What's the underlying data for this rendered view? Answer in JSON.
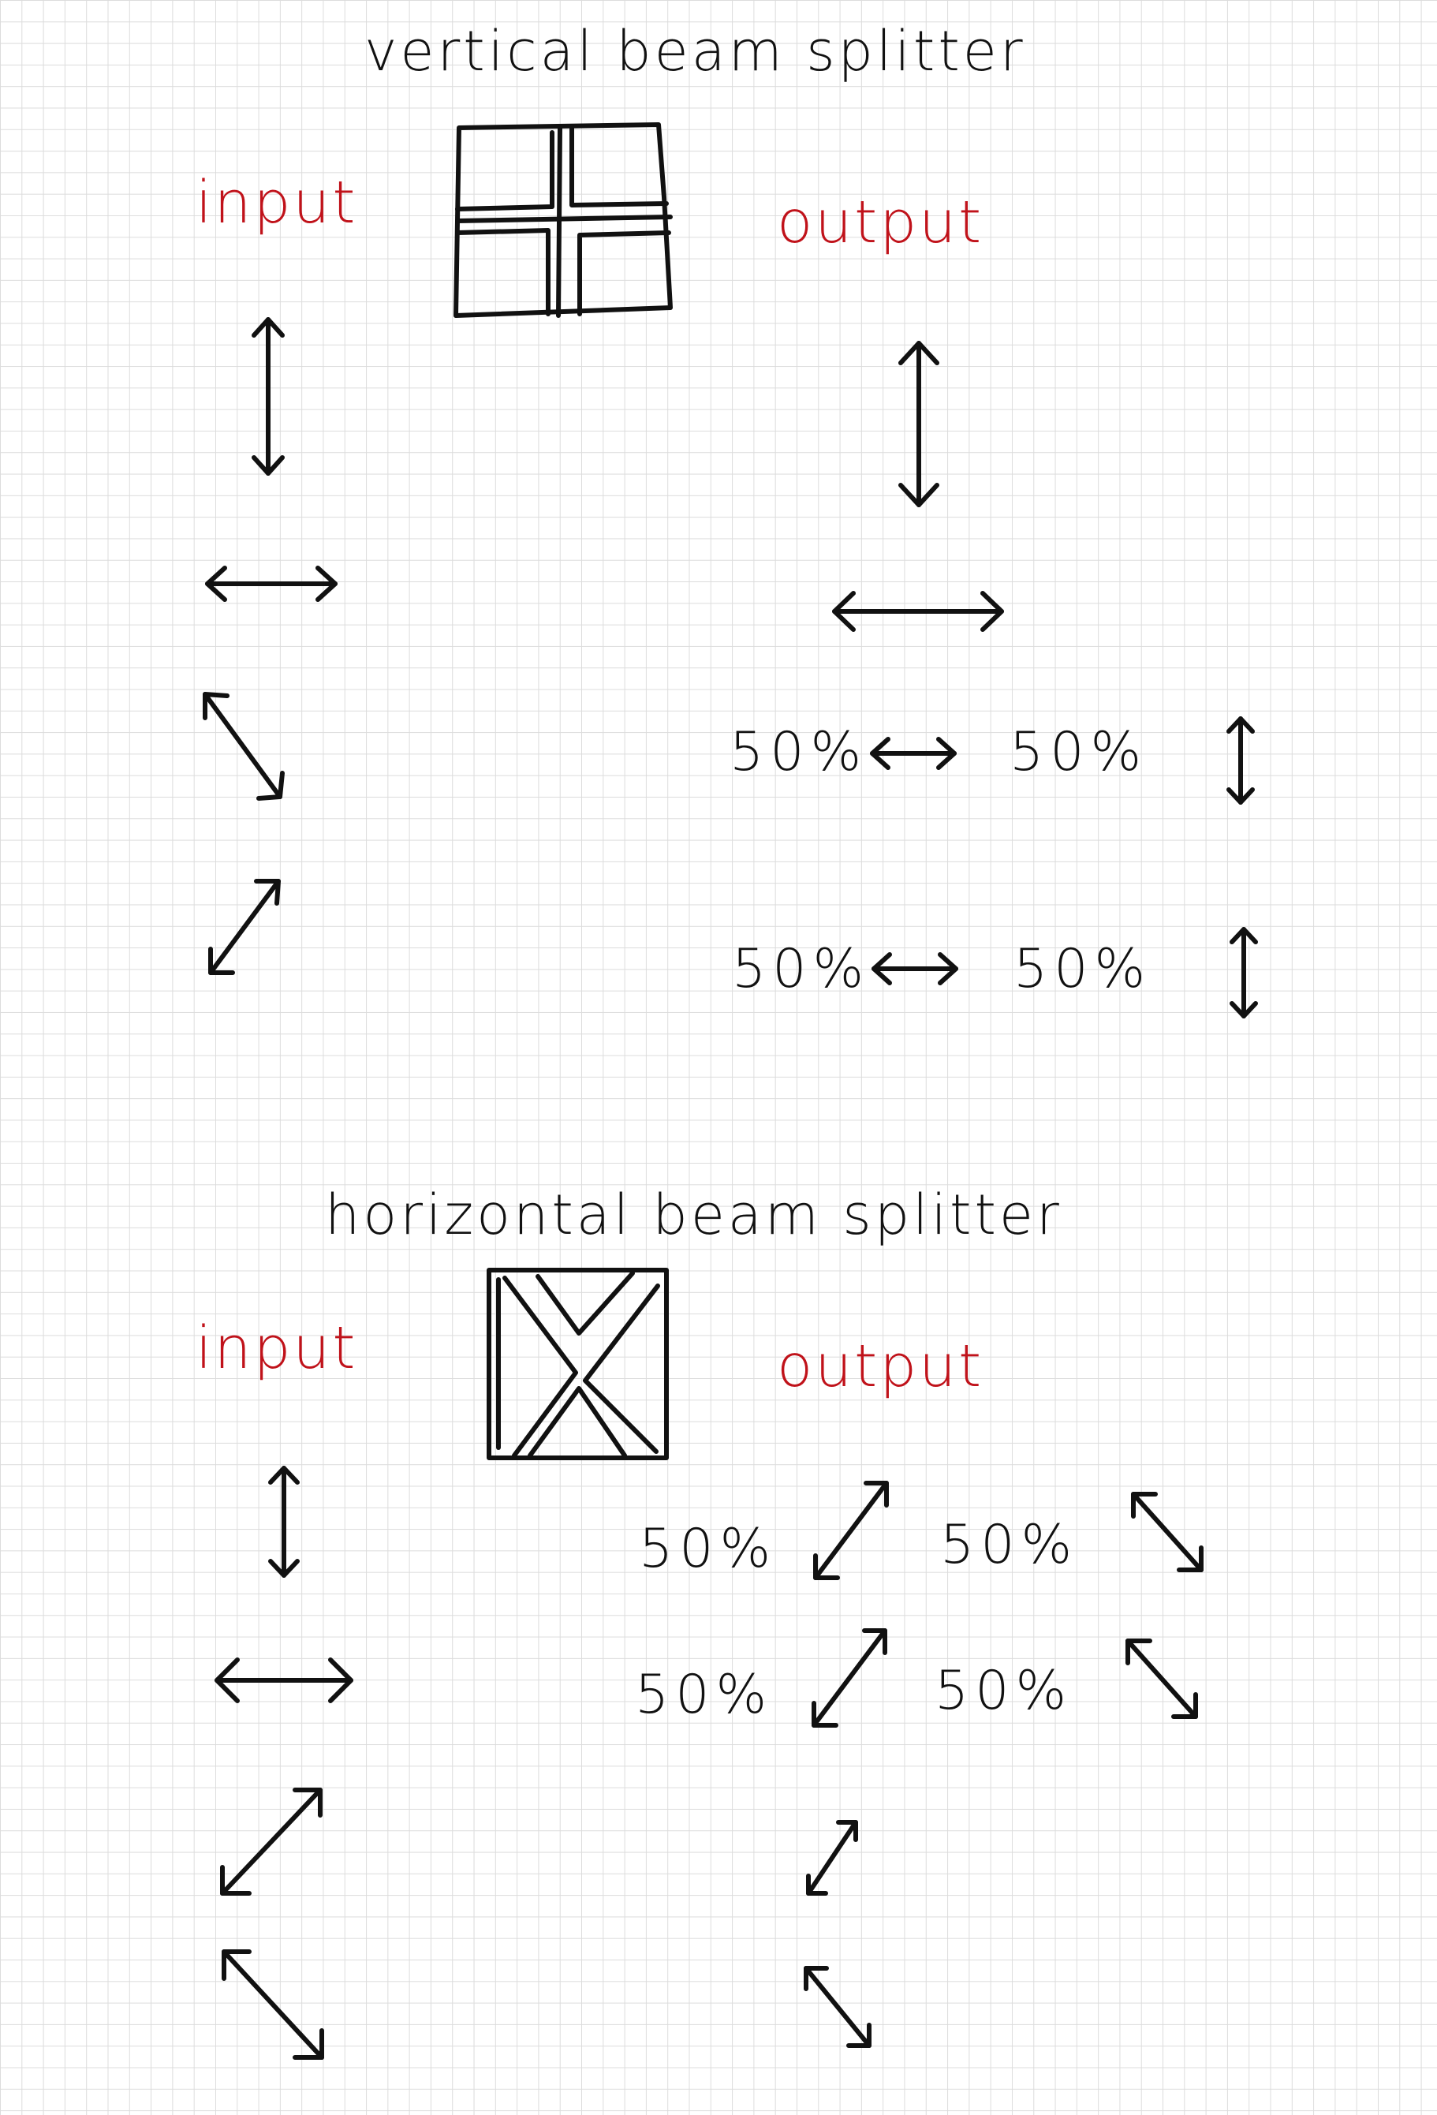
{
  "vertical": {
    "title": "vertical beam splitter",
    "input_label": "input",
    "output_label": "output",
    "inputs": [
      "vertical",
      "horizontal",
      "diagonal",
      "anti-diagonal"
    ],
    "outputs": [
      {
        "kind": "single",
        "pol": "vertical"
      },
      {
        "kind": "single",
        "pol": "horizontal"
      },
      {
        "kind": "split",
        "left_pct": "50%",
        "left_pol": "horizontal",
        "right_pct": "50%",
        "right_pol": "vertical"
      },
      {
        "kind": "split",
        "left_pct": "50%",
        "left_pol": "horizontal",
        "right_pct": "50%",
        "right_pol": "vertical"
      }
    ]
  },
  "horizontal": {
    "title": "horizontal beam splitter",
    "input_label": "input",
    "output_label": "output",
    "inputs": [
      "vertical",
      "horizontal",
      "anti-diagonal",
      "diagonal"
    ],
    "outputs": [
      {
        "kind": "split",
        "left_pct": "50%",
        "left_pol": "anti-diagonal",
        "right_pct": "50%",
        "right_pol": "diagonal"
      },
      {
        "kind": "split",
        "left_pct": "50%",
        "left_pol": "anti-diagonal",
        "right_pct": "50%",
        "right_pol": "diagonal"
      },
      {
        "kind": "single",
        "pol": "anti-diagonal"
      },
      {
        "kind": "single",
        "pol": "diagonal"
      }
    ]
  },
  "colors": {
    "ink": "#111111",
    "label": "#c0121a",
    "grid": "#dcdcdc"
  }
}
